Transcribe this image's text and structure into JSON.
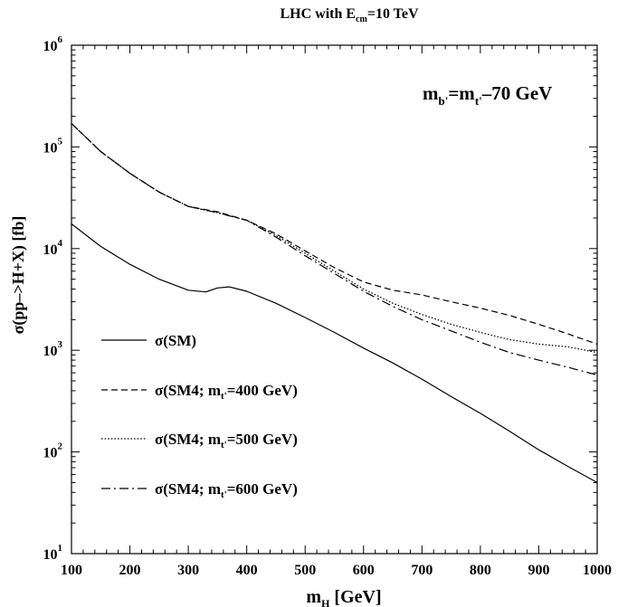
{
  "chart_data": {
    "type": "line",
    "title": {
      "main": "LHC with E",
      "sub": "cm",
      "tail": "=10 TeV"
    },
    "annotation": {
      "m": "m",
      "b": "b'",
      "eq": "=m",
      "t": "t'",
      "tail": "–70 GeV"
    },
    "xlabel": {
      "main": "m",
      "sub": "H",
      "tail": " [GeV]"
    },
    "ylabel": "σ(pp–>H+X) [fb]",
    "xlim": [
      100,
      1000
    ],
    "ylim": [
      10,
      1000000
    ],
    "yscale": "log",
    "grid": false,
    "legend_position": "lower-left",
    "x_ticks": [
      100,
      200,
      300,
      400,
      500,
      600,
      700,
      800,
      900,
      1000
    ],
    "y_ticks": [
      {
        "base": "10",
        "exp": "1",
        "value": 10
      },
      {
        "base": "10",
        "exp": "2",
        "value": 100
      },
      {
        "base": "10",
        "exp": "3",
        "value": 1000
      },
      {
        "base": "10",
        "exp": "4",
        "value": 10000
      },
      {
        "base": "10",
        "exp": "5",
        "value": 100000
      },
      {
        "base": "10",
        "exp": "6",
        "value": 1000000
      }
    ],
    "series": [
      {
        "legend": {
          "pre": "σ(SM)",
          "sub": "",
          "post": ""
        },
        "style": "solid",
        "x": [
          100,
          150,
          200,
          250,
          300,
          330,
          350,
          370,
          400,
          450,
          500,
          550,
          600,
          650,
          700,
          750,
          800,
          850,
          900,
          950,
          1000
        ],
        "y": [
          17500,
          10500,
          7000,
          5000,
          3900,
          3750,
          4100,
          4200,
          3800,
          2900,
          2100,
          1500,
          1050,
          750,
          520,
          350,
          240,
          160,
          105,
          72,
          50
        ]
      },
      {
        "legend": {
          "pre": "σ(SM4; m",
          "sub": "t'",
          "post": "=400 GeV)"
        },
        "style": "dashed",
        "x": [
          100,
          150,
          200,
          250,
          300,
          350,
          400,
          450,
          500,
          550,
          600,
          650,
          700,
          750,
          800,
          850,
          900,
          950,
          1000
        ],
        "y": [
          170000,
          90000,
          55000,
          36000,
          26000,
          23000,
          19000,
          14000,
          9500,
          6500,
          4700,
          3900,
          3500,
          3000,
          2600,
          2200,
          1800,
          1450,
          1150
        ]
      },
      {
        "legend": {
          "pre": "σ(SM4; m",
          "sub": "t'",
          "post": "=500 GeV)"
        },
        "style": "dotted",
        "x": [
          100,
          150,
          200,
          250,
          300,
          350,
          400,
          450,
          500,
          550,
          600,
          650,
          700,
          750,
          800,
          850,
          880,
          900,
          950,
          1000
        ],
        "y": [
          170000,
          90000,
          55000,
          36000,
          26000,
          22500,
          19000,
          13500,
          9000,
          6000,
          4000,
          2900,
          2250,
          1800,
          1500,
          1270,
          1200,
          1150,
          1080,
          950
        ]
      },
      {
        "legend": {
          "pre": "σ(SM4; m",
          "sub": "t'",
          "post": "=600 GeV)"
        },
        "style": "dashdot",
        "x": [
          100,
          150,
          200,
          250,
          300,
          350,
          400,
          450,
          500,
          550,
          600,
          650,
          700,
          750,
          800,
          850,
          900,
          950,
          1000
        ],
        "y": [
          170000,
          90000,
          55000,
          36000,
          26000,
          22500,
          19000,
          13000,
          8500,
          5700,
          3800,
          2700,
          2000,
          1550,
          1200,
          950,
          800,
          680,
          570
        ]
      }
    ]
  }
}
